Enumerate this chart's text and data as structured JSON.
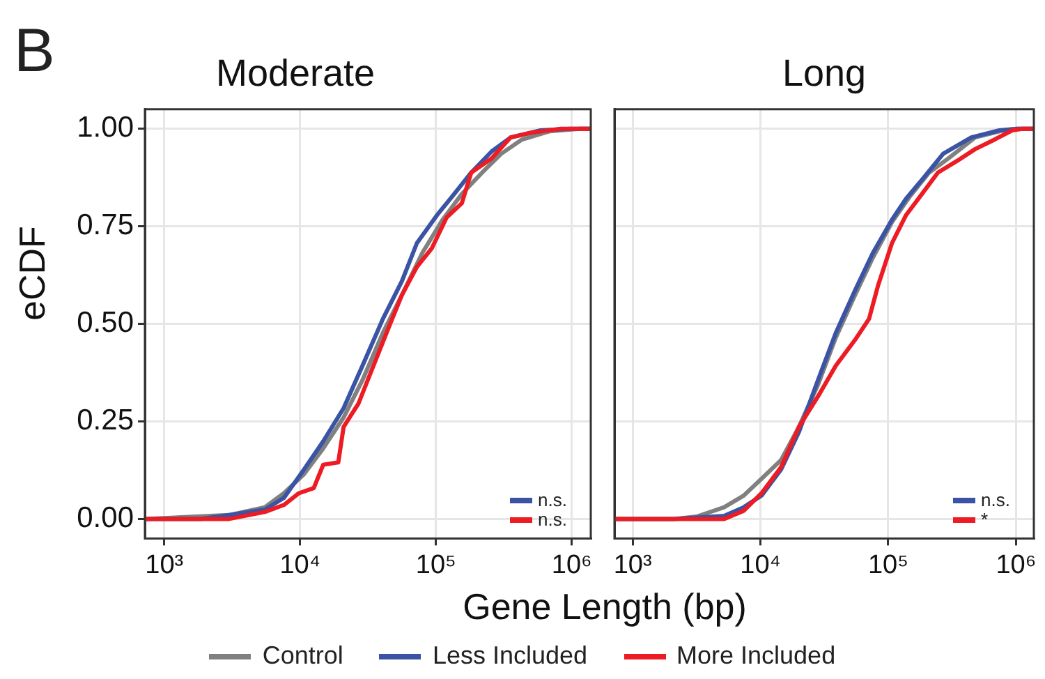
{
  "chart_data": [
    {
      "type": "line",
      "title": "Moderate",
      "xlabel": "Gene Length (bp)",
      "ylabel": "eCDF",
      "log": "x",
      "grid": true,
      "legend": "bottom",
      "xlim": [
        720,
        1380000
      ],
      "xticks": [
        {
          "value": 1000,
          "label": "10³"
        },
        {
          "value": 10000,
          "label": "10⁴"
        },
        {
          "value": 100000,
          "label": "10⁵"
        },
        {
          "value": 1000000,
          "label": "10⁶"
        }
      ],
      "ylim": [
        -0.05,
        1.05
      ],
      "yticks": [
        {
          "value": 0,
          "label": "0.00"
        },
        {
          "value": 0.25,
          "label": "0.25"
        },
        {
          "value": 0.5,
          "label": "0.50"
        },
        {
          "value": 0.75,
          "label": "0.75"
        },
        {
          "value": 1,
          "label": "1.00"
        }
      ],
      "annotations": [
        "B",
        "n.s.",
        "n.s."
      ],
      "series": [
        {
          "name": "Control",
          "color": "#808080",
          "x": [
            720,
            3000,
            5500,
            7600,
            10700,
            14800,
            20900,
            28800,
            40700,
            56200,
            79400,
            112000,
            155000,
            219000,
            302000,
            427000,
            692000,
            1150000,
            1380000
          ],
          "values": [
            0,
            0.01,
            0.03,
            0.066,
            0.115,
            0.181,
            0.26,
            0.356,
            0.477,
            0.574,
            0.682,
            0.767,
            0.833,
            0.888,
            0.936,
            0.972,
            0.994,
            1,
            1
          ]
        },
        {
          "name": "Less Included",
          "color": "#3a53a4",
          "x": [
            720,
            1860,
            3020,
            5500,
            7590,
            10700,
            14800,
            20900,
            28800,
            40700,
            56200,
            72400,
            102000,
            132000,
            182000,
            257000,
            355000,
            589000,
            977000,
            1380000
          ],
          "values": [
            0,
            0,
            0.01,
            0.024,
            0.054,
            0.127,
            0.199,
            0.284,
            0.393,
            0.513,
            0.61,
            0.707,
            0.779,
            0.827,
            0.888,
            0.942,
            0.978,
            0.996,
            1,
            1
          ]
        },
        {
          "name": "More Included",
          "color": "#ed1c24",
          "x": [
            720,
            3000,
            5500,
            7600,
            9800,
            12600,
            14800,
            19100,
            20900,
            26900,
            34700,
            44700,
            56200,
            72400,
            93300,
            120000,
            155000,
            182000,
            257000,
            355000,
            501000,
            832000,
            1380000
          ],
          "values": [
            0,
            0,
            0.018,
            0.036,
            0.066,
            0.079,
            0.139,
            0.145,
            0.236,
            0.296,
            0.393,
            0.489,
            0.574,
            0.646,
            0.694,
            0.773,
            0.809,
            0.888,
            0.924,
            0.978,
            0.99,
            1,
            1
          ]
        }
      ]
    },
    {
      "type": "line",
      "title": "Long",
      "log": "x",
      "grid": true,
      "tick_labels": "x",
      "xlim": [
        720,
        1380000
      ],
      "xticks": [
        {
          "value": 1000,
          "label": "10³"
        },
        {
          "value": 10000,
          "label": "10⁴"
        },
        {
          "value": 100000,
          "label": "10⁵"
        },
        {
          "value": 1000000,
          "label": "10⁶"
        }
      ],
      "ylim": [
        -0.05,
        1.05
      ],
      "yticks": [
        0,
        0.25,
        0.5,
        0.75,
        1
      ],
      "annotations": [
        "n.s.",
        "*"
      ],
      "series": [
        {
          "color": "#808080",
          "x": [
            720,
            2100,
            3160,
            5200,
            7400,
            10200,
            14500,
            20000,
            28200,
            38900,
            55000,
            75900,
            107000,
            148000,
            209000,
            295000,
            479000,
            794000,
            1020000,
            1380000
          ],
          "values": [
            0,
            0,
            0.006,
            0.03,
            0.06,
            0.103,
            0.151,
            0.236,
            0.344,
            0.465,
            0.574,
            0.67,
            0.761,
            0.827,
            0.888,
            0.924,
            0.978,
            0.996,
            1,
            1
          ]
        },
        {
          "color": "#3a53a4",
          "x": [
            720,
            2100,
            5200,
            7400,
            10200,
            14500,
            20000,
            28200,
            38900,
            55000,
            75900,
            107000,
            138000,
            191000,
            269000,
            447000,
            741000,
            1020000,
            1380000
          ],
          "values": [
            0,
            0,
            0.008,
            0.03,
            0.06,
            0.127,
            0.223,
            0.356,
            0.477,
            0.586,
            0.682,
            0.767,
            0.821,
            0.876,
            0.936,
            0.978,
            0.996,
            1,
            1
          ]
        },
        {
          "color": "#ed1c24",
          "x": [
            720,
            5200,
            7400,
            10200,
            14500,
            20000,
            28200,
            38900,
            55000,
            70800,
            83200,
            107000,
            138000,
            178000,
            245000,
            347000,
            479000,
            676000,
            933000,
            1120000,
            1380000
          ],
          "values": [
            0,
            0,
            0.021,
            0.066,
            0.133,
            0.236,
            0.314,
            0.393,
            0.459,
            0.513,
            0.598,
            0.707,
            0.779,
            0.827,
            0.888,
            0.918,
            0.948,
            0.972,
            0.996,
            1,
            1
          ]
        }
      ]
    }
  ]
}
